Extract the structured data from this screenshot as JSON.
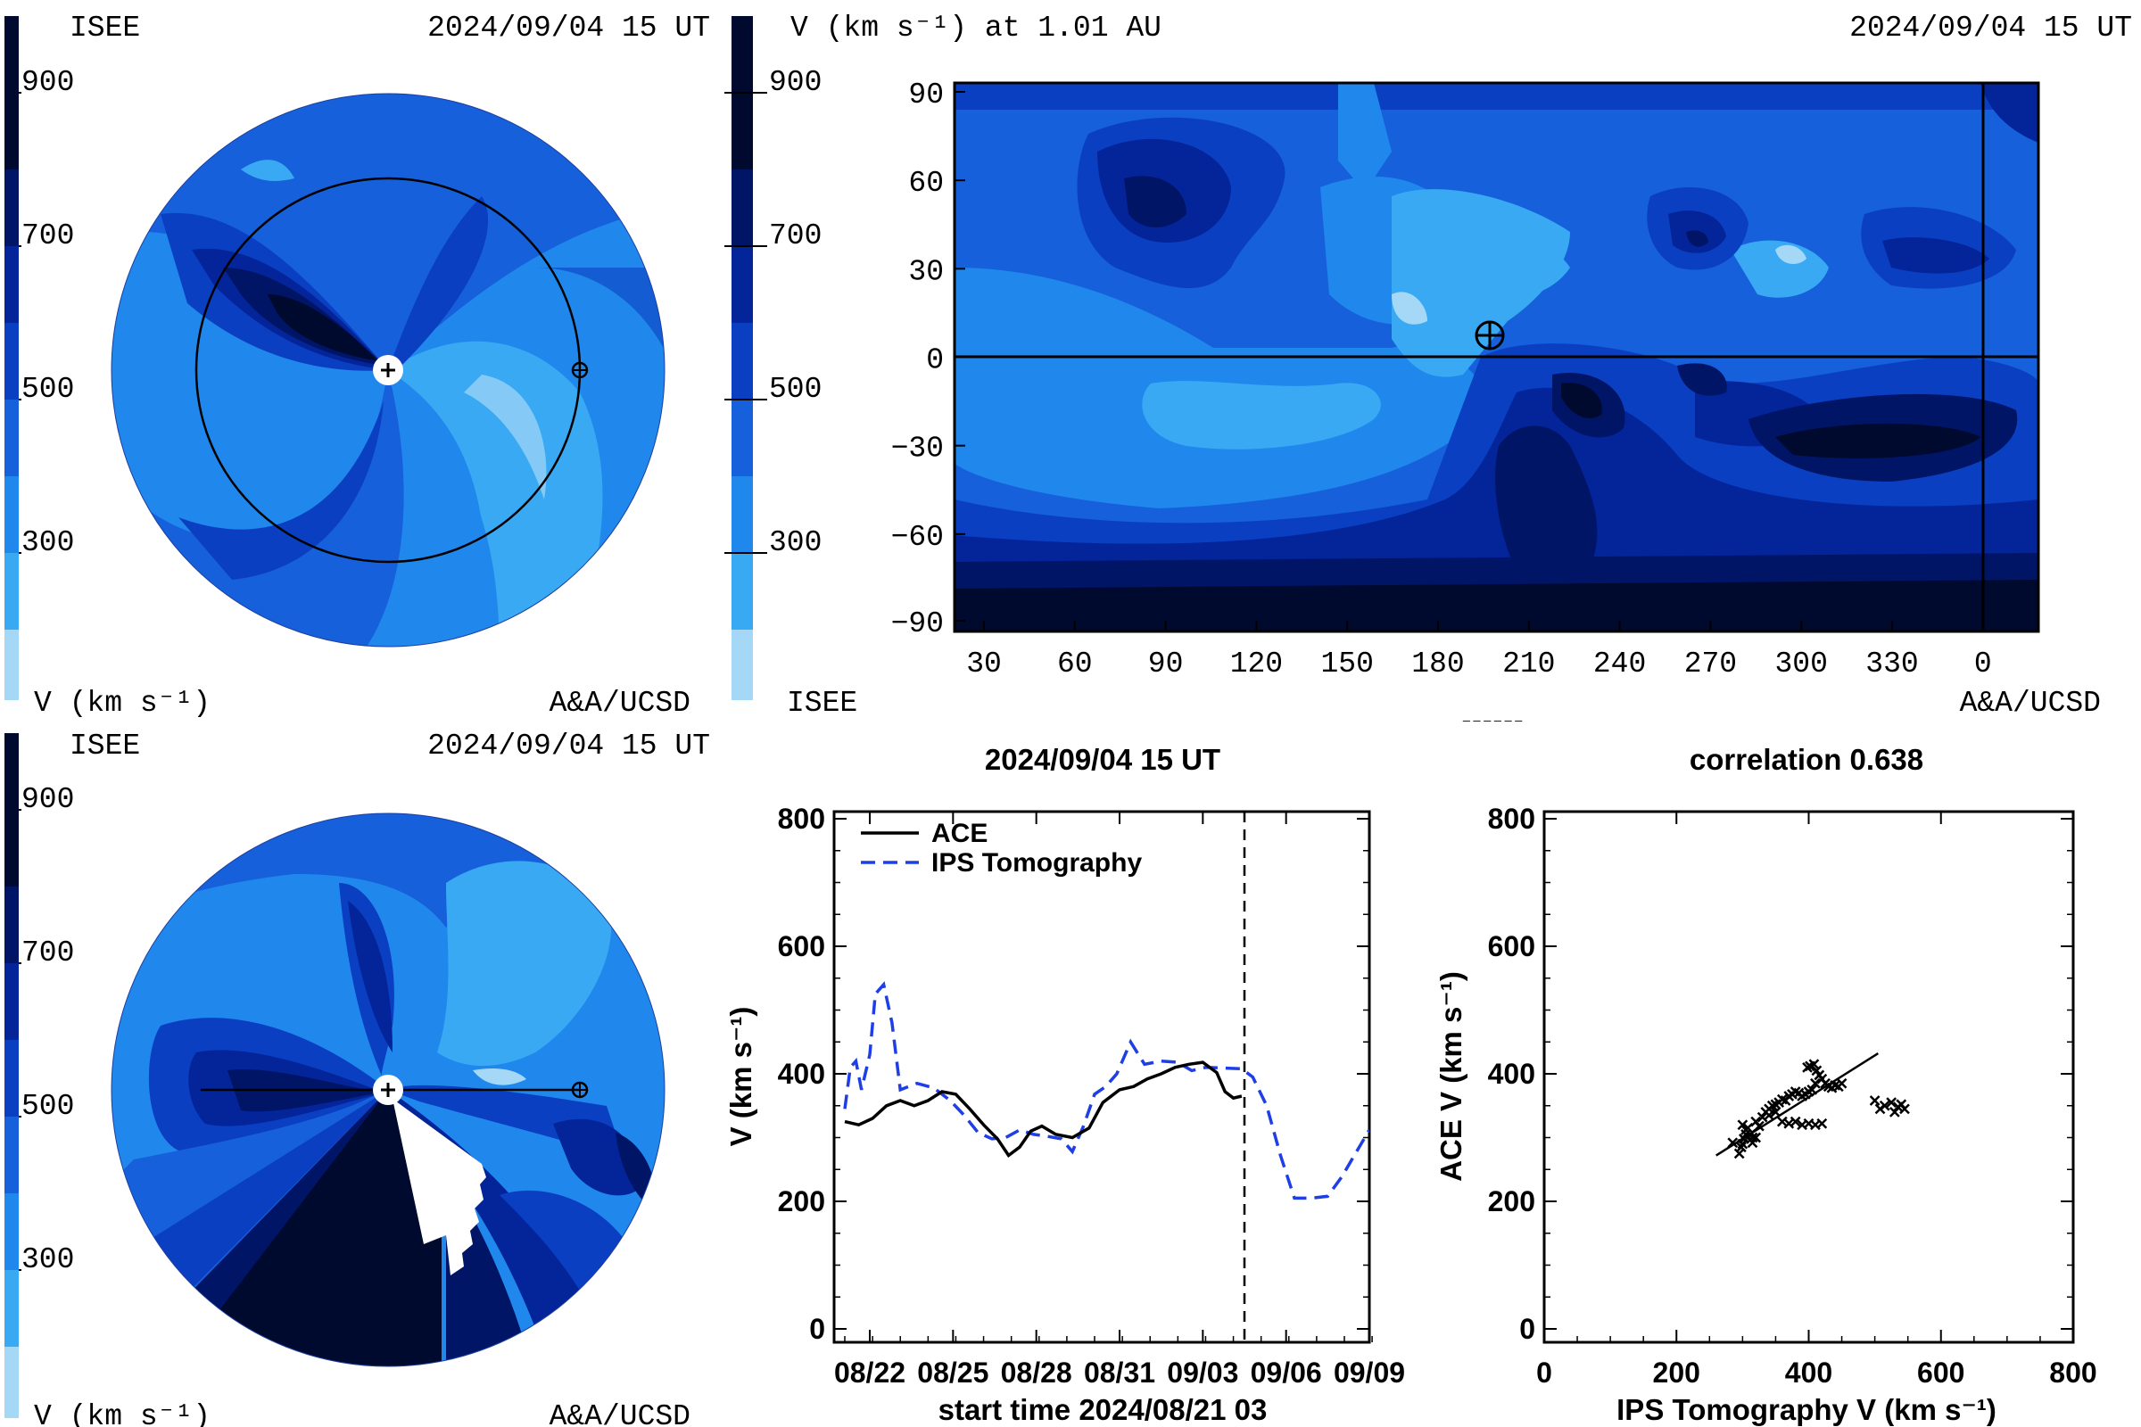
{
  "colors": {
    "c0": "#a5d8f6",
    "c1": "#39a9f4",
    "c2": "#2088ec",
    "c3": "#1660dc",
    "c4": "#0b3fc2",
    "c5": "#04249a",
    "c6": "#011567",
    "c7": "#00092e",
    "white_region": "#ffffff",
    "ace_line": "#000000",
    "ips_line": "#1f3fe6"
  },
  "colorbar_ticks": [
    "900",
    "700",
    "500",
    "300"
  ],
  "panel_tl": {
    "left_label": "ISEE",
    "date": "2024/09/04 15 UT",
    "unit_label": "V (km s⁻¹)",
    "credit": "A&A/UCSD",
    "sun_icon": "plus-in-circle",
    "earth_icon": "earth-cross-icon"
  },
  "panel_tr": {
    "title": "V (km s⁻¹) at 1.01 AU",
    "date": "2024/09/04 15 UT",
    "left_label": "ISEE",
    "credit": "A&A/UCSD",
    "y_ticks": [
      "90",
      "60",
      "30",
      "0",
      "−30",
      "−60",
      "−90"
    ],
    "x_ticks": [
      "30",
      "60",
      "90",
      "120",
      "150",
      "180",
      "210",
      "240",
      "270",
      "300",
      "330",
      "0"
    ],
    "earth_marker": {
      "longitude": 198,
      "latitude": 7
    }
  },
  "panel_bl": {
    "left_label": "ISEE",
    "date": "2024/09/04 15 UT",
    "unit_label": "V (km s⁻¹)",
    "credit": "A&A/UCSD"
  },
  "chart_data": [
    {
      "type": "line",
      "title": "2024/09/04 15 UT",
      "xlabel": "start time 2024/08/21 03",
      "ylabel": "V (km s⁻¹)",
      "x_tick_labels": [
        "08/22",
        "08/25",
        "08/28",
        "08/31",
        "09/03",
        "09/06",
        "09/09"
      ],
      "x_tick_days": [
        0.9,
        3.9,
        6.9,
        9.9,
        12.9,
        15.9,
        18.9
      ],
      "xlim": [
        0,
        18.9
      ],
      "ylim": [
        0,
        800
      ],
      "y_ticks": [
        0,
        200,
        400,
        600,
        800
      ],
      "now_marker_day": 14.4,
      "legend_position": "top-left",
      "series": [
        {
          "name": "ACE",
          "style": "solid",
          "points": [
            [
              0,
              325
            ],
            [
              0.5,
              320
            ],
            [
              1.0,
              330
            ],
            [
              1.5,
              350
            ],
            [
              2.0,
              358
            ],
            [
              2.5,
              350
            ],
            [
              3.0,
              358
            ],
            [
              3.5,
              372
            ],
            [
              4.0,
              368
            ],
            [
              4.5,
              345
            ],
            [
              5.0,
              320
            ],
            [
              5.5,
              298
            ],
            [
              5.9,
              272
            ],
            [
              6.3,
              285
            ],
            [
              6.7,
              310
            ],
            [
              7.1,
              318
            ],
            [
              7.6,
              305
            ],
            [
              8.2,
              300
            ],
            [
              8.8,
              315
            ],
            [
              9.3,
              355
            ],
            [
              9.9,
              375
            ],
            [
              10.4,
              380
            ],
            [
              10.9,
              392
            ],
            [
              11.4,
              400
            ],
            [
              11.9,
              410
            ],
            [
              12.4,
              415
            ],
            [
              12.9,
              418
            ],
            [
              13.4,
              402
            ],
            [
              13.7,
              372
            ],
            [
              14.0,
              362
            ],
            [
              14.3,
              365
            ]
          ]
        },
        {
          "name": "IPS Tomography",
          "style": "dashed",
          "points": [
            [
              0,
              345
            ],
            [
              0.2,
              410
            ],
            [
              0.4,
              420
            ],
            [
              0.6,
              375
            ],
            [
              0.9,
              430
            ],
            [
              1.1,
              525
            ],
            [
              1.4,
              540
            ],
            [
              1.7,
              480
            ],
            [
              2.0,
              375
            ],
            [
              2.6,
              385
            ],
            [
              3.2,
              378
            ],
            [
              3.8,
              358
            ],
            [
              4.3,
              335
            ],
            [
              4.8,
              308
            ],
            [
              5.3,
              298
            ],
            [
              5.8,
              300
            ],
            [
              6.3,
              312
            ],
            [
              6.8,
              305
            ],
            [
              7.3,
              302
            ],
            [
              7.8,
              298
            ],
            [
              8.2,
              278
            ],
            [
              8.6,
              318
            ],
            [
              9.0,
              368
            ],
            [
              9.4,
              380
            ],
            [
              9.8,
              400
            ],
            [
              10.3,
              450
            ],
            [
              10.8,
              415
            ],
            [
              11.4,
              420
            ],
            [
              12.0,
              418
            ],
            [
              12.5,
              405
            ],
            [
              13.0,
              410
            ],
            [
              14.3,
              408
            ],
            [
              14.7,
              395
            ],
            [
              15.2,
              350
            ],
            [
              15.7,
              272
            ],
            [
              16.2,
              205
            ],
            [
              16.8,
              205
            ],
            [
              17.4,
              208
            ],
            [
              17.9,
              238
            ],
            [
              18.4,
              275
            ],
            [
              18.9,
              312
            ]
          ]
        }
      ]
    },
    {
      "type": "scatter",
      "title": "correlation 0.638",
      "xlabel": "IPS Tomography V (km s⁻¹)",
      "ylabel": "ACE V (km s⁻¹)",
      "xlim": [
        0,
        800
      ],
      "ylim": [
        0,
        800
      ],
      "x_ticks": [
        0,
        200,
        400,
        600,
        800
      ],
      "y_ticks": [
        0,
        200,
        400,
        600,
        800
      ],
      "fit_line": [
        [
          260,
          272
        ],
        [
          505,
          432
        ]
      ],
      "points": [
        [
          295,
          275
        ],
        [
          298,
          285
        ],
        [
          300,
          290
        ],
        [
          302,
          298
        ],
        [
          305,
          305
        ],
        [
          308,
          315
        ],
        [
          300,
          320
        ],
        [
          305,
          312
        ],
        [
          312,
          305
        ],
        [
          315,
          292
        ],
        [
          320,
          300
        ],
        [
          325,
          318
        ],
        [
          320,
          325
        ],
        [
          330,
          332
        ],
        [
          335,
          340
        ],
        [
          340,
          345
        ],
        [
          345,
          350
        ],
        [
          350,
          352
        ],
        [
          355,
          355
        ],
        [
          360,
          360
        ],
        [
          365,
          358
        ],
        [
          370,
          365
        ],
        [
          375,
          368
        ],
        [
          380,
          372
        ],
        [
          385,
          370
        ],
        [
          390,
          365
        ],
        [
          395,
          368
        ],
        [
          400,
          372
        ],
        [
          405,
          375
        ],
        [
          410,
          385
        ],
        [
          398,
          410
        ],
        [
          402,
          412
        ],
        [
          408,
          415
        ],
        [
          412,
          405
        ],
        [
          416,
          398
        ],
        [
          420,
          392
        ],
        [
          425,
          385
        ],
        [
          430,
          380
        ],
        [
          435,
          378
        ],
        [
          440,
          382
        ],
        [
          445,
          380
        ],
        [
          450,
          385
        ],
        [
          360,
          325
        ],
        [
          370,
          322
        ],
        [
          380,
          325
        ],
        [
          390,
          320
        ],
        [
          400,
          322
        ],
        [
          410,
          320
        ],
        [
          420,
          322
        ],
        [
          500,
          358
        ],
        [
          508,
          345
        ],
        [
          515,
          350
        ],
        [
          525,
          355
        ],
        [
          530,
          340
        ],
        [
          535,
          348
        ],
        [
          540,
          352
        ],
        [
          545,
          345
        ],
        [
          340,
          335
        ],
        [
          350,
          340
        ],
        [
          315,
          300
        ],
        [
          285,
          292
        ]
      ]
    }
  ]
}
